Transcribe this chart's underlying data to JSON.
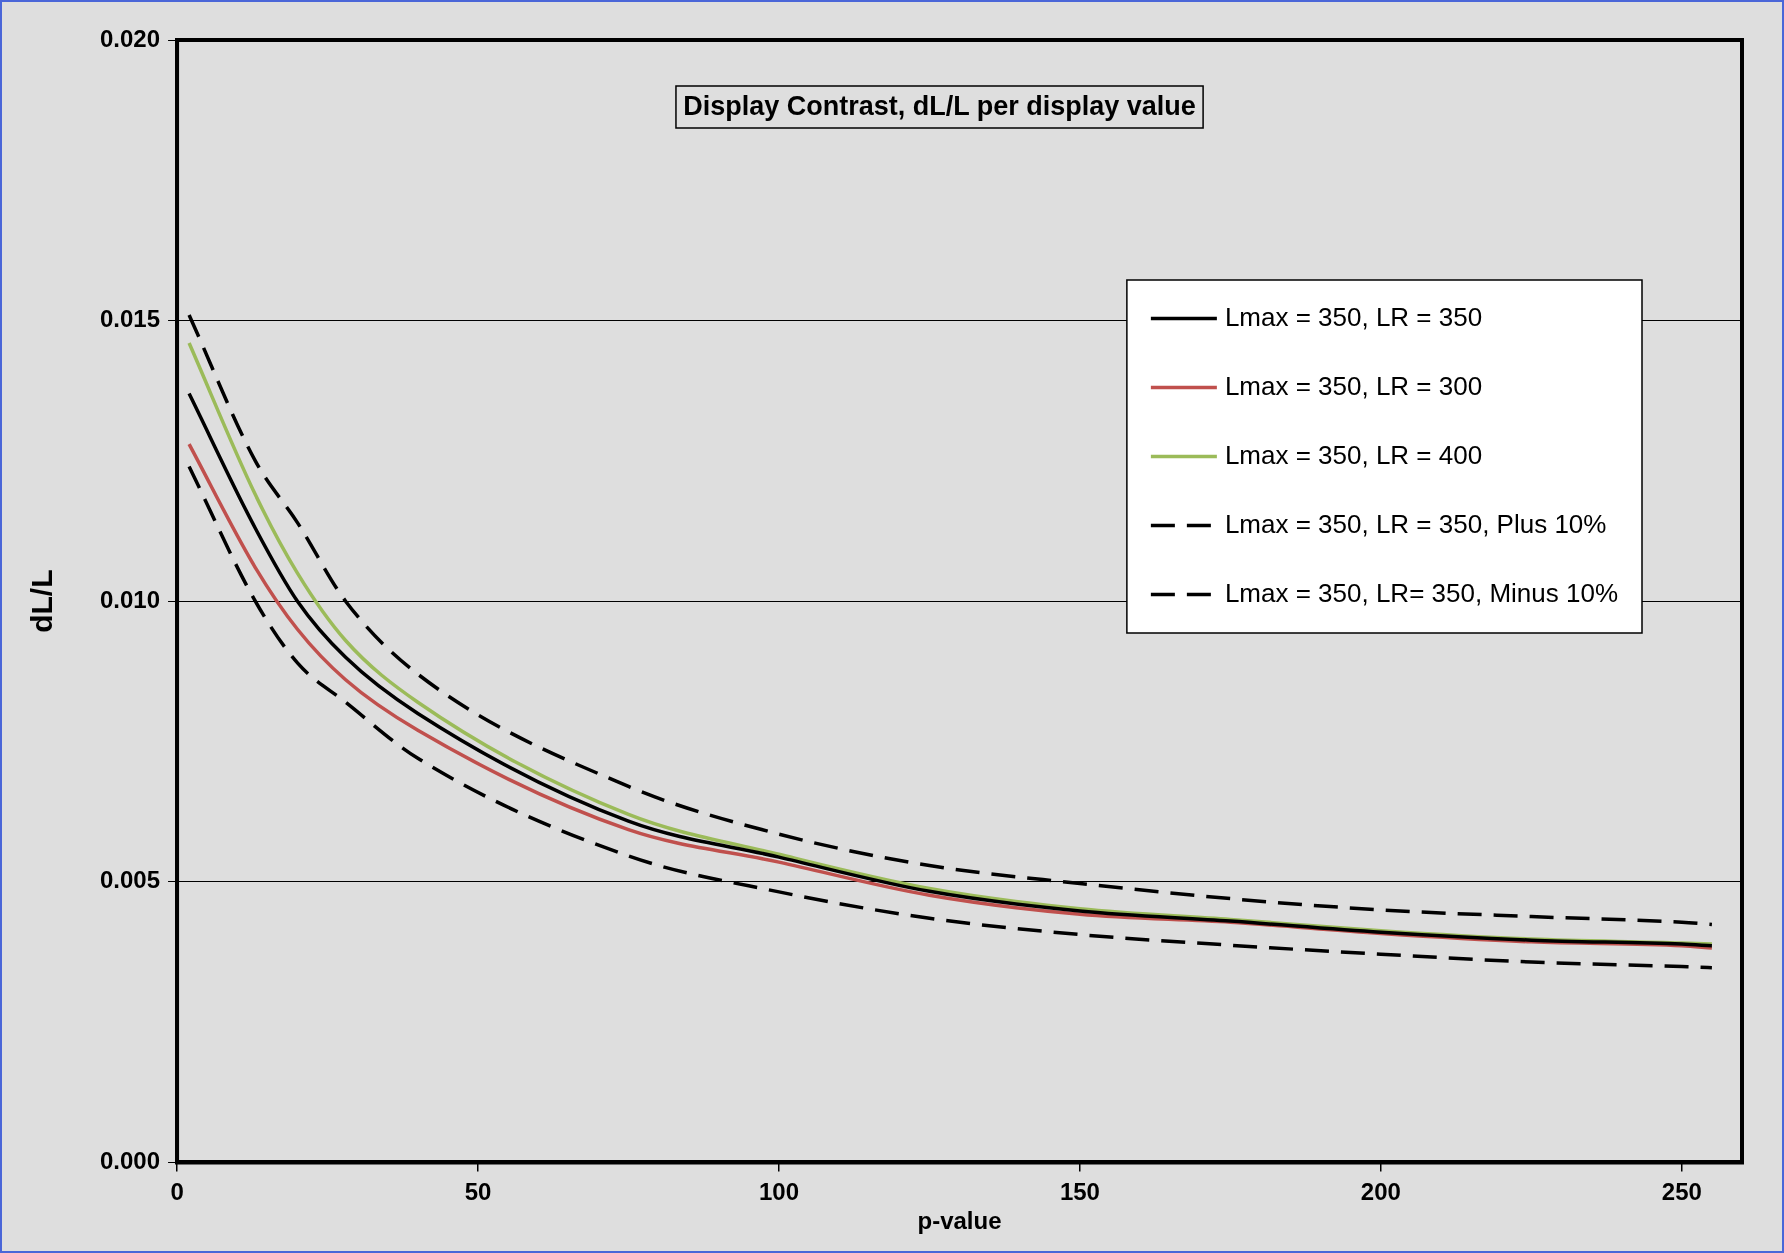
{
  "chart_data": {
    "type": "line",
    "title": "Display Contrast, dL/L per display value",
    "xlabel": "p-value",
    "ylabel": "dL/L",
    "x": [
      2,
      13,
      20,
      28,
      40,
      75,
      100,
      125,
      150,
      175,
      200,
      225,
      250,
      255
    ],
    "series": [
      {
        "name": "Lmax = 350, LR = 350",
        "color": "#000000",
        "line_style": "solid",
        "values": [
          0.0137,
          0.0113,
          0.01,
          0.009,
          0.008,
          0.00608,
          0.00544,
          0.00483,
          0.00448,
          0.0043,
          0.0041,
          0.00396,
          0.00389,
          0.00386
        ]
      },
      {
        "name": "Lmax = 350, LR = 300",
        "color": "#c0504d",
        "line_style": "solid",
        "values": [
          0.0128,
          0.0106,
          0.0095,
          0.0086,
          0.0077,
          0.00593,
          0.00535,
          0.00476,
          0.00442,
          0.00428,
          0.00408,
          0.00393,
          0.00386,
          0.00382
        ]
      },
      {
        "name": "Lmax = 350, LR = 400",
        "color": "#9bbb59",
        "line_style": "solid",
        "values": [
          0.0146,
          0.0119,
          0.0105,
          0.0093,
          0.0082,
          0.0062,
          0.00549,
          0.00488,
          0.00452,
          0.00433,
          0.00413,
          0.00398,
          0.00391,
          0.00389
        ]
      },
      {
        "name": "Lmax = 350, LR = 350, Plus 10%",
        "color": "#000000",
        "line_style": "dashed",
        "values": [
          0.0151,
          0.0125,
          0.0114,
          0.01,
          0.0087,
          0.0067,
          0.00585,
          0.00529,
          0.00497,
          0.0047,
          0.0045,
          0.00438,
          0.00428,
          0.00424
        ]
      },
      {
        "name": "Lmax = 350, LR= 350, Minus 10%",
        "color": "#000000",
        "line_style": "dashed",
        "values": [
          0.0124,
          0.01,
          0.0089,
          0.0082,
          0.0072,
          0.00546,
          0.00482,
          0.00435,
          0.00406,
          0.00387,
          0.00371,
          0.00357,
          0.00349,
          0.00347
        ]
      }
    ],
    "xlim": [
      0,
      260
    ],
    "xticks": [
      0,
      50,
      100,
      150,
      200,
      250
    ],
    "ylim": [
      0,
      0.02
    ],
    "yticks": [
      {
        "value": 0,
        "label": "0.000"
      },
      {
        "value": 0.005,
        "label": "0.005"
      },
      {
        "value": 0.01,
        "label": "0.010"
      },
      {
        "value": 0.015,
        "label": "0.015"
      },
      {
        "value": 0.02,
        "label": "0.020"
      }
    ],
    "grid": "y",
    "legend": "top right"
  }
}
